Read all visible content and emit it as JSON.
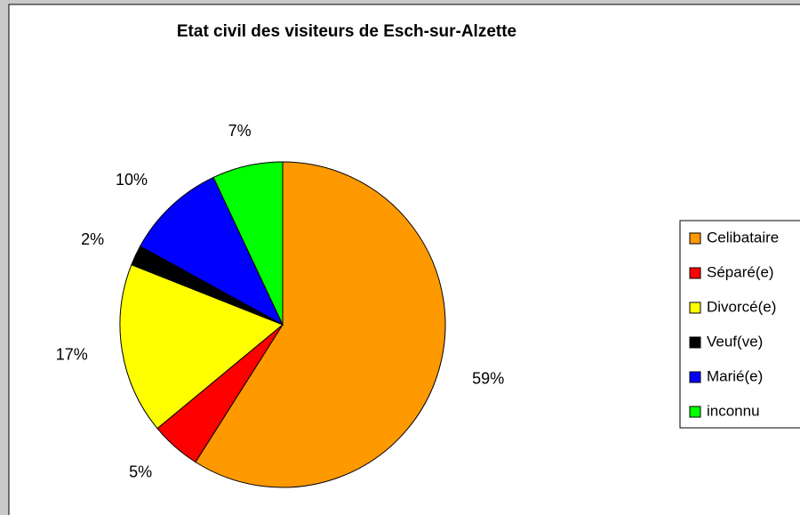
{
  "chart_data": {
    "type": "pie",
    "title": "Etat civil des visiteurs de Esch-sur-Alzette",
    "categories": [
      "Celibataire",
      "Séparé(e)",
      "Divorcé(e)",
      "Veuf(ve)",
      "Marié(e)",
      "inconnu"
    ],
    "values": [
      59,
      5,
      17,
      2,
      10,
      7
    ],
    "value_labels": [
      "59%",
      "5%",
      "17%",
      "2%",
      "10%",
      "7%"
    ],
    "colors": [
      "#ff9900",
      "#ff0000",
      "#ffff00",
      "#000000",
      "#0000ff",
      "#00ff00"
    ],
    "legend": "right"
  }
}
